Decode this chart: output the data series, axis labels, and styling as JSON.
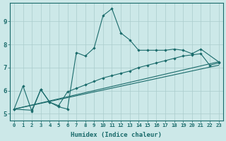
{
  "xlabel": "Humidex (Indice chaleur)",
  "xlim": [
    -0.5,
    23.5
  ],
  "ylim": [
    4.7,
    9.8
  ],
  "background_color": "#cce8e8",
  "grid_color": "#aacccc",
  "line_color": "#1a6b6b",
  "line1_x": [
    0,
    1,
    2,
    3,
    4,
    5,
    6,
    7,
    8,
    9,
    10,
    11,
    12,
    13,
    14,
    15,
    16,
    17,
    18,
    19,
    20,
    21,
    23
  ],
  "line1_y": [
    5.2,
    6.2,
    5.1,
    6.05,
    5.5,
    5.3,
    5.2,
    7.65,
    7.5,
    7.85,
    9.25,
    9.55,
    8.5,
    8.2,
    7.75,
    7.75,
    7.75,
    7.75,
    7.8,
    7.75,
    7.6,
    7.8,
    7.25
  ],
  "line2_x": [
    0,
    2,
    3,
    4,
    5,
    6,
    7,
    8,
    9,
    10,
    11,
    12,
    13,
    14,
    15,
    16,
    17,
    18,
    19,
    20,
    21,
    22,
    23
  ],
  "line2_y": [
    5.2,
    5.15,
    6.05,
    5.5,
    5.35,
    5.95,
    6.1,
    6.25,
    6.4,
    6.55,
    6.65,
    6.75,
    6.85,
    7.0,
    7.1,
    7.2,
    7.3,
    7.4,
    7.5,
    7.55,
    7.6,
    7.1,
    7.2
  ],
  "line3_x": [
    0,
    23
  ],
  "line3_y": [
    5.2,
    7.25
  ],
  "line4_x": [
    0,
    23
  ],
  "line4_y": [
    5.2,
    7.1
  ],
  "xticks": [
    0,
    1,
    2,
    3,
    4,
    5,
    6,
    7,
    8,
    9,
    10,
    11,
    12,
    13,
    14,
    15,
    16,
    17,
    18,
    19,
    20,
    21,
    22,
    23
  ],
  "yticks": [
    5,
    6,
    7,
    8,
    9
  ]
}
